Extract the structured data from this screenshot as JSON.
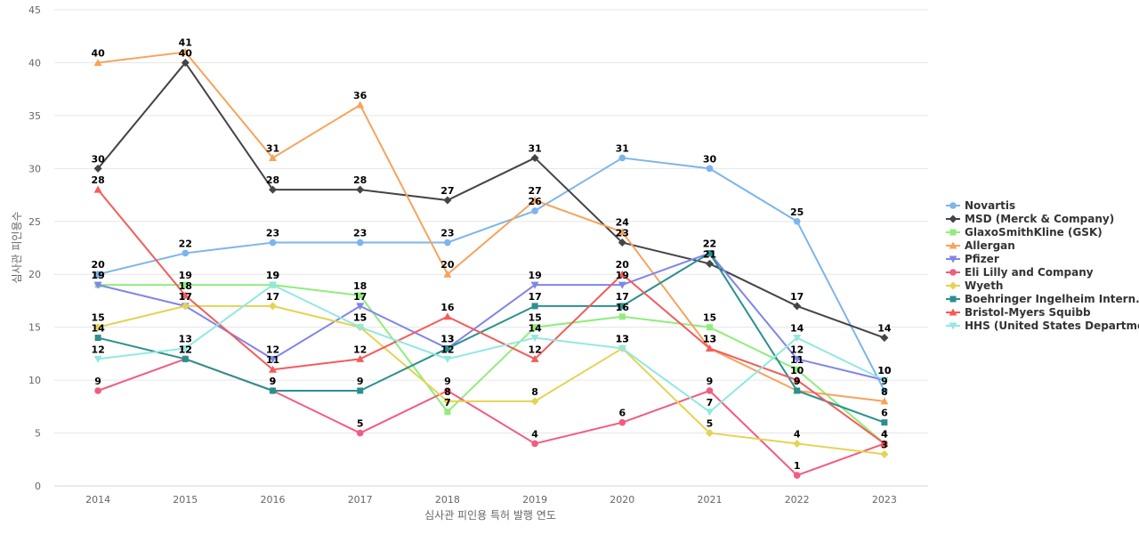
{
  "chart_data": {
    "type": "line",
    "title": "",
    "xlabel": "심사관 피인용 특허 발행 연도",
    "ylabel": "심사관 피인용수",
    "ylim": [
      0,
      45
    ],
    "yticks": [
      0,
      5,
      10,
      15,
      20,
      25,
      30,
      35,
      40,
      45
    ],
    "categories": [
      "2014",
      "2015",
      "2016",
      "2017",
      "2018",
      "2019",
      "2020",
      "2021",
      "2022",
      "2023"
    ],
    "grid": "horizontal",
    "legend_position": "right",
    "series": [
      {
        "name": "Novartis",
        "color": "#7cb5ec",
        "marker": "circle",
        "values": [
          20,
          22,
          23,
          23,
          23,
          26,
          31,
          30,
          25,
          9
        ]
      },
      {
        "name": "MSD (Merck & Company)",
        "color": "#434348",
        "marker": "diamond",
        "values": [
          30,
          40,
          28,
          28,
          27,
          31,
          23,
          21,
          17,
          14
        ]
      },
      {
        "name": "GlaxoSmithKline (GSK)",
        "color": "#90ed7d",
        "marker": "square",
        "values": [
          19,
          19,
          19,
          18,
          7,
          15,
          16,
          15,
          11,
          4
        ]
      },
      {
        "name": "Allergan",
        "color": "#f7a35c",
        "marker": "triangle",
        "values": [
          40,
          41,
          31,
          36,
          20,
          27,
          24,
          13,
          9,
          8
        ]
      },
      {
        "name": "Pfizer",
        "color": "#8085e9",
        "marker": "triangle-down",
        "values": [
          19,
          17,
          12,
          17,
          13,
          19,
          19,
          22,
          12,
          10
        ]
      },
      {
        "name": "Eli Lilly and Company",
        "color": "#f15c80",
        "marker": "circle",
        "values": [
          9,
          12,
          9,
          5,
          9,
          4,
          6,
          9,
          1,
          4
        ]
      },
      {
        "name": "Wyeth",
        "color": "#e4d354",
        "marker": "diamond",
        "values": [
          15,
          17,
          17,
          15,
          8,
          8,
          13,
          5,
          4,
          3
        ]
      },
      {
        "name": "Boehringer Ingelheim Intern...",
        "color": "#2b908f",
        "marker": "square",
        "values": [
          14,
          12,
          9,
          9,
          13,
          17,
          17,
          22,
          9,
          6
        ]
      },
      {
        "name": "Bristol-Myers Squibb",
        "color": "#f45b5b",
        "marker": "triangle",
        "values": [
          28,
          18,
          11,
          12,
          16,
          12,
          20,
          13,
          10,
          4
        ]
      },
      {
        "name": "HHS (United States Departme...",
        "color": "#91e8e1",
        "marker": "triangle-down",
        "values": [
          12,
          13,
          19,
          15,
          12,
          14,
          13,
          7,
          14,
          10
        ]
      }
    ]
  }
}
